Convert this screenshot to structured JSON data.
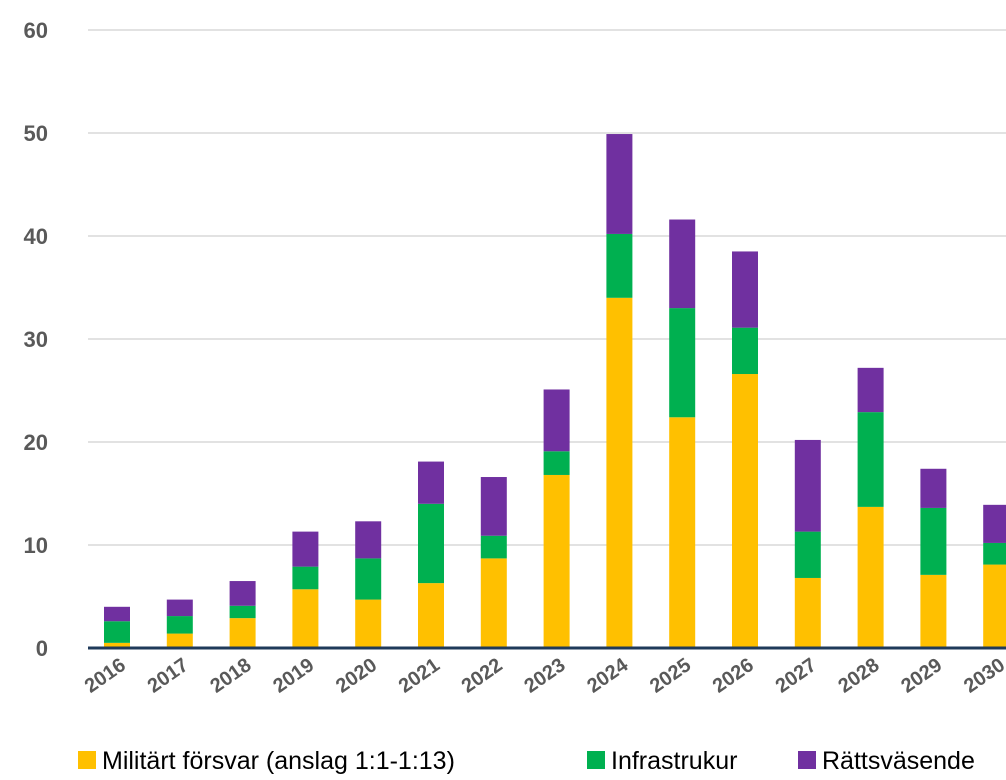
{
  "chart_data": {
    "type": "bar",
    "stacked": true,
    "categories": [
      "2016",
      "2017",
      "2018",
      "2019",
      "2020",
      "2021",
      "2022",
      "2023",
      "2024",
      "2025",
      "2026",
      "2027",
      "2028",
      "2029",
      "2030"
    ],
    "series": [
      {
        "name": "Militärt försvar (anslag 1:1-1:13)",
        "color": "#FFC000",
        "values": [
          0.5,
          1.4,
          2.9,
          5.7,
          4.7,
          6.3,
          8.7,
          16.8,
          34.0,
          22.4,
          26.6,
          6.8,
          13.7,
          7.1,
          8.1
        ]
      },
      {
        "name": "Infrastrukur",
        "color": "#00B050",
        "values": [
          2.1,
          1.7,
          1.2,
          2.2,
          4.0,
          7.7,
          2.2,
          2.3,
          6.2,
          10.6,
          4.5,
          4.5,
          9.2,
          6.5,
          2.1
        ]
      },
      {
        "name": "Rättsväsende",
        "color": "#7030A0",
        "values": [
          1.4,
          1.6,
          2.4,
          3.4,
          3.6,
          4.1,
          5.7,
          6.0,
          9.7,
          8.6,
          7.4,
          8.9,
          4.3,
          3.8,
          3.7
        ]
      }
    ],
    "yticks": [
      "0",
      "10",
      "20",
      "30",
      "40",
      "50",
      "60"
    ],
    "ylim": [
      0,
      60
    ],
    "grid": true,
    "legend_position": "bottom",
    "title": "",
    "xlabel": "",
    "ylabel": ""
  }
}
